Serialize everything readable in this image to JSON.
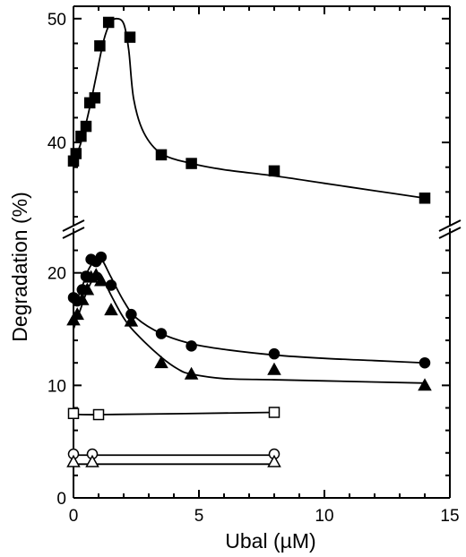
{
  "chart_data": {
    "type": "scatter",
    "title": "",
    "xlabel": "Ubal (µM)",
    "ylabel": "Degradation (%)",
    "xlim": [
      0,
      15
    ],
    "x_ticks": [
      0,
      5,
      10,
      15
    ],
    "y_scale": "broken",
    "y_segments": [
      {
        "range": [
          0,
          23
        ],
        "ticks": [
          0,
          10,
          20
        ]
      },
      {
        "range": [
          34,
          51
        ],
        "ticks": [
          40,
          50
        ]
      }
    ],
    "grid": false,
    "legend": "none",
    "series": [
      {
        "marker": "filled-square",
        "points": [
          [
            0.0,
            38.5
          ],
          [
            0.1,
            39.1
          ],
          [
            0.3,
            40.5
          ],
          [
            0.5,
            41.3
          ],
          [
            0.65,
            43.2
          ],
          [
            0.85,
            43.6
          ],
          [
            1.05,
            47.8
          ],
          [
            1.4,
            49.7
          ],
          [
            2.25,
            48.5
          ],
          [
            3.5,
            39.0
          ],
          [
            4.7,
            38.3
          ],
          [
            8.0,
            37.7
          ],
          [
            14.0,
            35.5
          ]
        ],
        "curve": [
          [
            0.0,
            38.3
          ],
          [
            0.3,
            40.0
          ],
          [
            0.6,
            42.4
          ],
          [
            0.9,
            45.3
          ],
          [
            1.2,
            48.2
          ],
          [
            1.45,
            49.6
          ],
          [
            1.7,
            50.0
          ],
          [
            2.0,
            49.6
          ],
          [
            2.2,
            47.5
          ],
          [
            2.4,
            43.5
          ],
          [
            2.8,
            40.8
          ],
          [
            3.5,
            39.1
          ],
          [
            4.7,
            38.3
          ],
          [
            6.0,
            37.8
          ],
          [
            8.0,
            37.3
          ],
          [
            10.0,
            36.7
          ],
          [
            12.0,
            36.1
          ],
          [
            14.0,
            35.5
          ]
        ]
      },
      {
        "marker": "filled-circle",
        "points": [
          [
            0.0,
            17.8
          ],
          [
            0.15,
            17.5
          ],
          [
            0.35,
            18.5
          ],
          [
            0.5,
            19.7
          ],
          [
            0.7,
            21.2
          ],
          [
            0.9,
            21.0
          ],
          [
            1.1,
            21.4
          ],
          [
            1.5,
            18.9
          ],
          [
            2.3,
            16.3
          ],
          [
            3.5,
            14.6
          ],
          [
            4.7,
            13.5
          ],
          [
            8.0,
            12.8
          ],
          [
            14.0,
            12.0
          ]
        ],
        "curve": [
          [
            0.0,
            17.0
          ],
          [
            0.3,
            18.5
          ],
          [
            0.6,
            20.3
          ],
          [
            0.9,
            21.2
          ],
          [
            1.1,
            21.3
          ],
          [
            1.5,
            19.6
          ],
          [
            2.0,
            17.5
          ],
          [
            2.5,
            16.0
          ],
          [
            3.5,
            14.6
          ],
          [
            4.7,
            13.7
          ],
          [
            6.0,
            13.2
          ],
          [
            8.0,
            12.7
          ],
          [
            10.0,
            12.4
          ],
          [
            12.0,
            12.2
          ],
          [
            14.0,
            12.0
          ]
        ]
      },
      {
        "marker": "filled-triangle",
        "points": [
          [
            0.0,
            15.8
          ],
          [
            0.15,
            16.3
          ],
          [
            0.35,
            17.6
          ],
          [
            0.55,
            18.5
          ],
          [
            0.7,
            19.6
          ],
          [
            0.9,
            19.8
          ],
          [
            1.1,
            19.3
          ],
          [
            1.5,
            16.7
          ],
          [
            2.3,
            15.7
          ],
          [
            3.5,
            12.0
          ],
          [
            4.7,
            11.0
          ],
          [
            8.0,
            11.4
          ],
          [
            14.0,
            10.0
          ]
        ],
        "curve": [
          [
            0.0,
            15.0
          ],
          [
            0.3,
            16.9
          ],
          [
            0.6,
            18.7
          ],
          [
            0.9,
            19.8
          ],
          [
            1.1,
            19.8
          ],
          [
            1.5,
            18.0
          ],
          [
            2.0,
            16.0
          ],
          [
            2.5,
            14.6
          ],
          [
            3.5,
            12.5
          ],
          [
            4.2,
            11.4
          ],
          [
            4.7,
            11.0
          ],
          [
            6.0,
            10.6
          ],
          [
            8.0,
            10.5
          ],
          [
            10.0,
            10.4
          ],
          [
            14.0,
            10.2
          ]
        ]
      },
      {
        "marker": "open-square",
        "points": [
          [
            0.0,
            7.5
          ],
          [
            1.0,
            7.4
          ],
          [
            8.0,
            7.6
          ]
        ],
        "curve": [
          [
            0.0,
            7.5
          ],
          [
            1.0,
            7.4
          ],
          [
            8.0,
            7.6
          ]
        ]
      },
      {
        "marker": "open-circle",
        "points": [
          [
            0.0,
            3.9
          ],
          [
            0.75,
            3.9
          ],
          [
            8.0,
            3.9
          ]
        ],
        "curve": [
          [
            0.0,
            3.8
          ],
          [
            0.75,
            3.8
          ],
          [
            8.0,
            3.8
          ]
        ]
      },
      {
        "marker": "open-triangle",
        "points": [
          [
            0.0,
            3.2
          ],
          [
            0.75,
            3.2
          ],
          [
            8.0,
            3.2
          ]
        ],
        "curve": [
          [
            0.0,
            3.0
          ],
          [
            0.75,
            3.0
          ],
          [
            8.0,
            3.0
          ]
        ]
      }
    ]
  }
}
